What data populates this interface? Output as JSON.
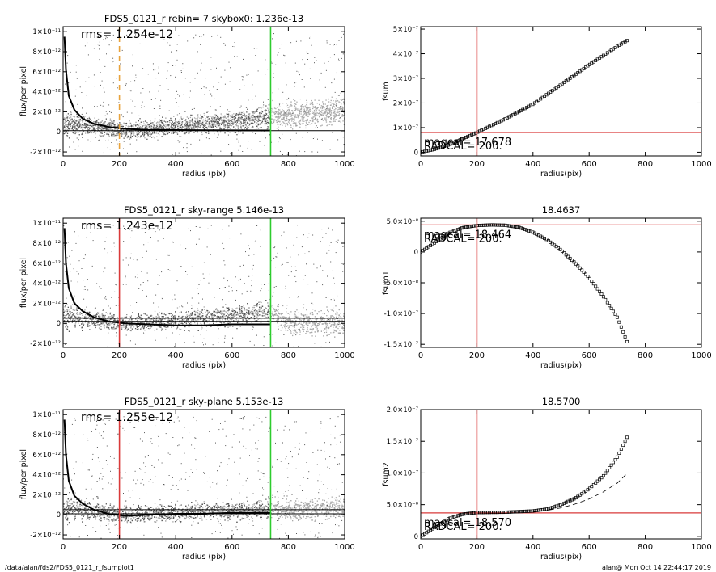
{
  "footer": {
    "left": "/data/alan/fds2/FDS5_0121_r_fsumplot1",
    "right": "alan@  Mon Oct 14 22:44:17 2019"
  },
  "chart_data": [
    {
      "id": "p1",
      "type": "scatter",
      "title": "FDS5_0121_r rebin= 7    skybox0:  1.236e-13",
      "xlabel": "radius (pix)",
      "ylabel": "flux/per pixel",
      "xlim": [
        0,
        1000
      ],
      "ylim": [
        -2.4e-12,
        1.05e-11
      ],
      "xticks": [
        0,
        200,
        400,
        600,
        800,
        1000
      ],
      "yticks": [
        -2e-12,
        0,
        2e-12,
        4e-12,
        6e-12,
        8e-12,
        1e-11
      ],
      "yticklabels": [
        "-2×10⁻¹²",
        "0",
        "2×10⁻¹²",
        "4×10⁻¹²",
        "6×10⁻¹²",
        "8×10⁻¹²",
        "1×10⁻¹¹"
      ],
      "annotation": "rms= 1.254e-12",
      "vlines": [
        {
          "x": 200,
          "color": "#e8a33c",
          "dash": true
        },
        {
          "x": 737,
          "color": "#2ecc2e",
          "dash": false
        }
      ],
      "hlines": [
        {
          "y": 1.236e-13,
          "color": "#000000"
        }
      ],
      "profile": [
        [
          5,
          9.5e-12
        ],
        [
          10,
          6.2e-12
        ],
        [
          20,
          3.6e-12
        ],
        [
          40,
          2.2e-12
        ],
        [
          70,
          1.3e-12
        ],
        [
          110,
          8e-13
        ],
        [
          160,
          5e-13
        ],
        [
          220,
          3e-13
        ],
        [
          300,
          2e-13
        ],
        [
          400,
          1.8e-13
        ],
        [
          500,
          1.6e-13
        ],
        [
          600,
          1.5e-13
        ],
        [
          700,
          1.4e-13
        ],
        [
          737,
          1.4e-13
        ]
      ],
      "band": [
        [
          0,
          1e-12
        ],
        [
          200,
          2e-13
        ],
        [
          300,
          3e-13
        ],
        [
          500,
          8e-13
        ],
        [
          737,
          1.5e-12
        ],
        [
          800,
          1.7e-12
        ],
        [
          1000,
          2.3e-12
        ]
      ],
      "spread": [
        [
          0,
          2.5e-12
        ],
        [
          200,
          1.6e-12
        ],
        [
          500,
          2e-12
        ],
        [
          737,
          2.4e-12
        ],
        [
          1000,
          2.8e-12
        ]
      ]
    },
    {
      "id": "p2",
      "type": "scatter",
      "title": "",
      "xlabel": "radius(pix)",
      "ylabel": "fsum",
      "xlim": [
        0,
        1000
      ],
      "ylim": [
        -1.5e-08,
        5.1e-07
      ],
      "xticks": [
        0,
        200,
        400,
        600,
        800,
        1000
      ],
      "yticks": [
        0,
        1e-07,
        2e-07,
        3e-07,
        4e-07,
        5e-07
      ],
      "yticklabels": [
        "0",
        "1×10⁻⁷",
        "2×10⁻⁷",
        "3×10⁻⁷",
        "4×10⁻⁷",
        "5×10⁻⁷"
      ],
      "labels": [
        "magcal= 17.678",
        "RADCAL=  200."
      ],
      "vlines": [
        {
          "x": 200,
          "color": "#d93a3a",
          "dash": false
        }
      ],
      "hlines": [
        {
          "y": 8e-08,
          "color": "#d93a3a"
        }
      ],
      "curve": [
        [
          0,
          0
        ],
        [
          50,
          1.2e-08
        ],
        [
          100,
          3e-08
        ],
        [
          150,
          5.5e-08
        ],
        [
          200,
          8e-08
        ],
        [
          300,
          1.35e-07
        ],
        [
          400,
          1.95e-07
        ],
        [
          500,
          2.75e-07
        ],
        [
          600,
          3.55e-07
        ],
        [
          700,
          4.3e-07
        ],
        [
          737,
          4.55e-07
        ]
      ]
    },
    {
      "id": "p3",
      "type": "scatter",
      "title": "FDS5_0121_r sky-range  5.146e-13",
      "xlabel": "radius (pix)",
      "ylabel": "flux/per pixel",
      "xlim": [
        0,
        1000
      ],
      "ylim": [
        -2.4e-12,
        1.05e-11
      ],
      "xticks": [
        0,
        200,
        400,
        600,
        800,
        1000
      ],
      "yticks": [
        -2e-12,
        0,
        2e-12,
        4e-12,
        6e-12,
        8e-12,
        1e-11
      ],
      "yticklabels": [
        "-2×10⁻¹²",
        "0",
        "2×10⁻¹²",
        "4×10⁻¹²",
        "6×10⁻¹²",
        "8×10⁻¹²",
        "1×10⁻¹¹"
      ],
      "annotation": "rms= 1.243e-12",
      "vlines": [
        {
          "x": 200,
          "color": "#d93a3a",
          "dash": false
        },
        {
          "x": 737,
          "color": "#2ecc2e",
          "dash": false
        }
      ],
      "hlines": [
        {
          "y": 5.146e-13,
          "color": "#000000"
        },
        {
          "y": 2e-13,
          "color": "#000000"
        }
      ],
      "profile": [
        [
          5,
          9.5e-12
        ],
        [
          10,
          6e-12
        ],
        [
          20,
          3.5e-12
        ],
        [
          40,
          2e-12
        ],
        [
          70,
          1.2e-12
        ],
        [
          110,
          6e-13
        ],
        [
          160,
          2e-13
        ],
        [
          220,
          0
        ],
        [
          300,
          -1e-13
        ],
        [
          400,
          -2e-13
        ],
        [
          500,
          -2e-13
        ],
        [
          600,
          -1e-13
        ],
        [
          700,
          -1e-13
        ],
        [
          737,
          -1e-13
        ]
      ],
      "band": [
        [
          0,
          8e-13
        ],
        [
          200,
          0
        ],
        [
          300,
          2e-13
        ],
        [
          500,
          6e-13
        ],
        [
          737,
          1.2e-12
        ],
        [
          800,
          2e-13
        ],
        [
          1000,
          1e-13
        ]
      ],
      "spread": [
        [
          0,
          2.5e-12
        ],
        [
          200,
          1.5e-12
        ],
        [
          500,
          2e-12
        ],
        [
          737,
          2.4e-12
        ],
        [
          1000,
          2.5e-12
        ]
      ]
    },
    {
      "id": "p4",
      "type": "scatter",
      "title": "18.4637",
      "xlabel": "radius(pix)",
      "ylabel": "fsum1",
      "xlim": [
        0,
        1000
      ],
      "ylim": [
        -1.55e-07,
        5.5e-08
      ],
      "xticks": [
        0,
        200,
        400,
        600,
        800,
        1000
      ],
      "yticks": [
        -1.5e-07,
        -1e-07,
        -5e-08,
        0,
        5e-08
      ],
      "yticklabels": [
        "-1.5×10⁻⁷",
        "-1.0×10⁻⁷",
        "-5.0×10⁻⁸",
        "0",
        "5.0×10⁻⁸"
      ],
      "labels": [
        "magcal= 18.464",
        "RADCAL=  200."
      ],
      "vlines": [
        {
          "x": 200,
          "color": "#d93a3a",
          "dash": false
        }
      ],
      "hlines": [
        {
          "y": 4.4e-08,
          "color": "#d93a3a"
        }
      ],
      "curve": [
        [
          0,
          0
        ],
        [
          50,
          1.5e-08
        ],
        [
          100,
          3.1e-08
        ],
        [
          150,
          3.95e-08
        ],
        [
          200,
          4.3e-08
        ],
        [
          250,
          4.4e-08
        ],
        [
          300,
          4.35e-08
        ],
        [
          350,
          4e-08
        ],
        [
          400,
          3.2e-08
        ],
        [
          450,
          2e-08
        ],
        [
          500,
          3e-09
        ],
        [
          550,
          -1.8e-08
        ],
        [
          600,
          -4.2e-08
        ],
        [
          650,
          -7.2e-08
        ],
        [
          700,
          -1.06e-07
        ],
        [
          737,
          -1.48e-07
        ]
      ]
    },
    {
      "id": "p5",
      "type": "scatter",
      "title": "FDS5_0121_r sky-plane  5.153e-13",
      "xlabel": "radius (pix)",
      "ylabel": "flux/per pixel",
      "xlim": [
        0,
        1000
      ],
      "ylim": [
        -2.4e-12,
        1.05e-11
      ],
      "xticks": [
        0,
        200,
        400,
        600,
        800,
        1000
      ],
      "yticks": [
        -2e-12,
        0,
        2e-12,
        4e-12,
        6e-12,
        8e-12,
        1e-11
      ],
      "yticklabels": [
        "-2×10⁻¹²",
        "0",
        "2×10⁻¹²",
        "4×10⁻¹²",
        "6×10⁻¹²",
        "8×10⁻¹²",
        "1×10⁻¹¹"
      ],
      "annotation": "rms= 1.255e-12",
      "vlines": [
        {
          "x": 200,
          "color": "#d93a3a",
          "dash": false
        },
        {
          "x": 737,
          "color": "#2ecc2e",
          "dash": false
        }
      ],
      "hlines": [
        {
          "y": 5.153e-13,
          "color": "#000000"
        },
        {
          "y": 1e-13,
          "color": "#000000"
        }
      ],
      "profile": [
        [
          5,
          9.5e-12
        ],
        [
          10,
          6e-12
        ],
        [
          20,
          3.4e-12
        ],
        [
          40,
          1.9e-12
        ],
        [
          70,
          1.1e-12
        ],
        [
          110,
          5e-13
        ],
        [
          160,
          1e-13
        ],
        [
          220,
          -1e-13
        ],
        [
          300,
          0
        ],
        [
          400,
          1e-13
        ],
        [
          500,
          1e-13
        ],
        [
          600,
          2e-13
        ],
        [
          700,
          2e-13
        ],
        [
          737,
          2e-13
        ]
      ],
      "band": [
        [
          0,
          8e-13
        ],
        [
          200,
          0
        ],
        [
          300,
          2e-13
        ],
        [
          500,
          4e-13
        ],
        [
          737,
          6e-13
        ],
        [
          800,
          6e-13
        ],
        [
          1000,
          8e-13
        ]
      ],
      "spread": [
        [
          0,
          2.4e-12
        ],
        [
          200,
          1.6e-12
        ],
        [
          500,
          1.8e-12
        ],
        [
          737,
          2e-12
        ],
        [
          1000,
          2.2e-12
        ]
      ]
    },
    {
      "id": "p6",
      "type": "scatter",
      "title": "18.5700",
      "xlabel": "radius(pix)",
      "ylabel": "fsum2",
      "xlim": [
        0,
        1000
      ],
      "ylim": [
        -4e-09,
        2e-07
      ],
      "xticks": [
        0,
        200,
        400,
        600,
        800,
        1000
      ],
      "yticks": [
        0,
        5e-08,
        1e-07,
        1.5e-07,
        2e-07
      ],
      "yticklabels": [
        "0",
        "5.0×10⁻⁸",
        "1.0×10⁻⁷",
        "1.5×10⁻⁷",
        "2.0×10⁻⁷"
      ],
      "labels": [
        "magcal= 18.570",
        "RADCAL=  200."
      ],
      "vlines": [
        {
          "x": 200,
          "color": "#d93a3a",
          "dash": false
        }
      ],
      "hlines": [
        {
          "y": 3.7e-08,
          "color": "#d93a3a"
        }
      ],
      "curve": [
        [
          0,
          0
        ],
        [
          50,
          1.4e-08
        ],
        [
          100,
          2.8e-08
        ],
        [
          150,
          3.5e-08
        ],
        [
          200,
          3.75e-08
        ],
        [
          300,
          3.8e-08
        ],
        [
          400,
          4e-08
        ],
        [
          450,
          4.3e-08
        ],
        [
          500,
          5e-08
        ],
        [
          550,
          6e-08
        ],
        [
          600,
          7.5e-08
        ],
        [
          650,
          9.5e-08
        ],
        [
          700,
          1.25e-07
        ],
        [
          737,
          1.58e-07
        ]
      ],
      "dashcurve": [
        [
          400,
          3.9e-08
        ],
        [
          450,
          4.1e-08
        ],
        [
          500,
          4.5e-08
        ],
        [
          550,
          5.1e-08
        ],
        [
          600,
          5.9e-08
        ],
        [
          650,
          7e-08
        ],
        [
          700,
          8.4e-08
        ],
        [
          737,
          1e-07
        ]
      ]
    }
  ]
}
